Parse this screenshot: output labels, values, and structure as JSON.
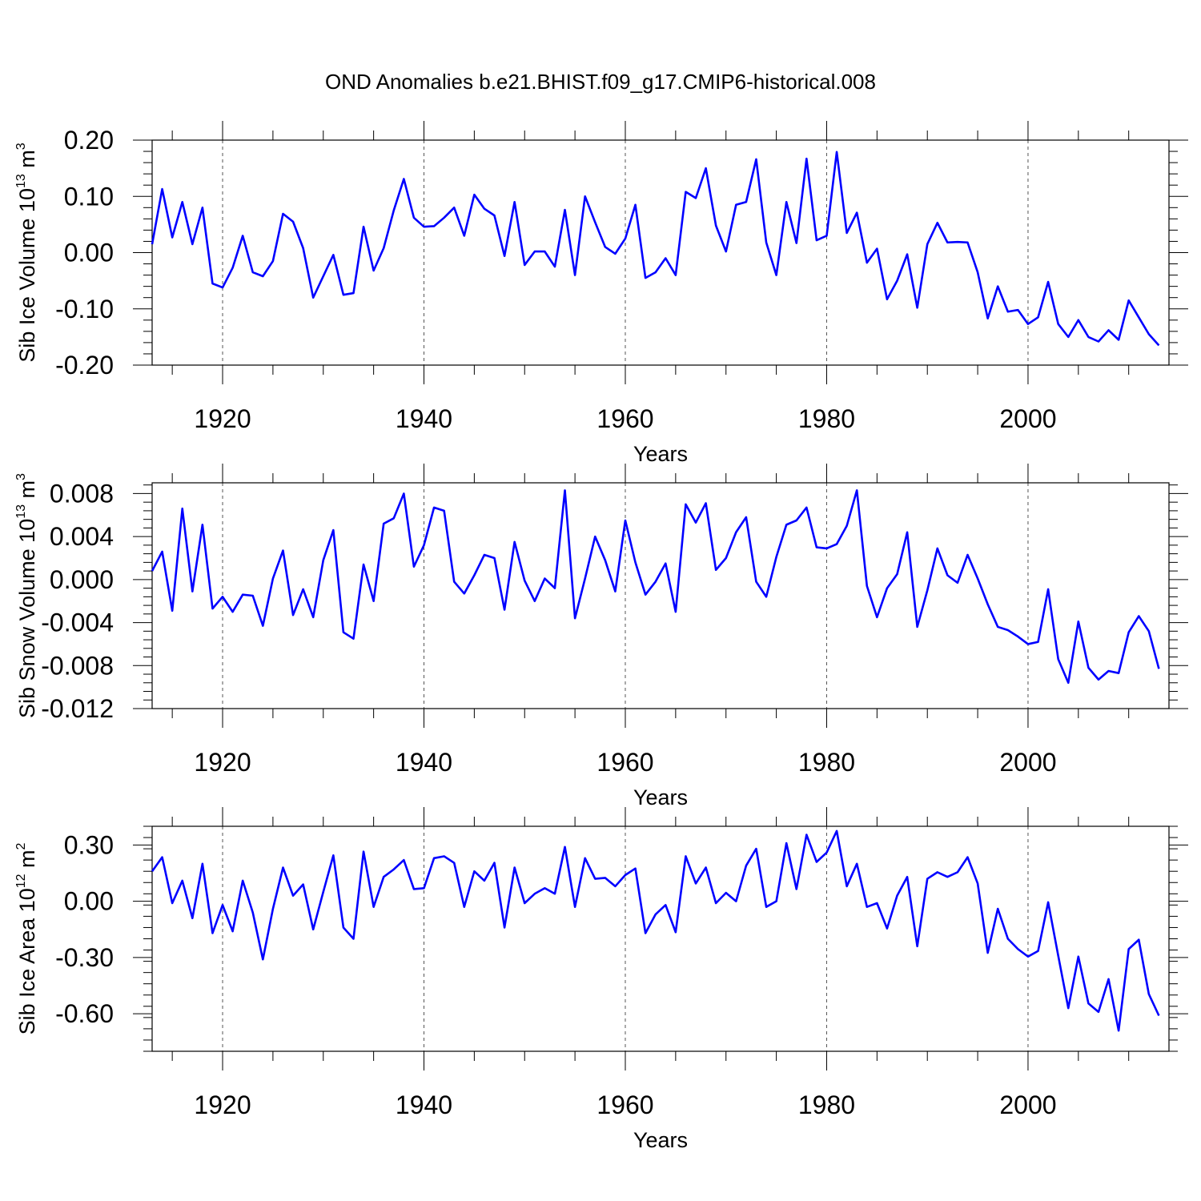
{
  "figure_title": "OND Anomalies b.e21.BHIST.f09_g17.CMIP6-historical.008",
  "chart_data": [
    {
      "type": "line",
      "title": "OND Anomalies b.e21.BHIST.f09_g17.CMIP6-historical.008",
      "xlabel": "Years",
      "ylabel": "Sib Ice Volume 10",
      "ylabel_sup": "13",
      "ylabel_unit": " m",
      "ylabel_unit_sup": "3",
      "xlim": [
        1913,
        2014
      ],
      "ylim": [
        -0.2,
        0.2
      ],
      "xticks": [
        1920,
        1940,
        1960,
        1980,
        2000
      ],
      "xtick_labels": [
        "1920",
        "1940",
        "1960",
        "1980",
        "2000"
      ],
      "yticks": [
        -0.2,
        -0.1,
        0.0,
        0.1,
        0.2
      ],
      "ytick_labels": [
        "-0.20",
        "-0.10",
        "0.00",
        "0.10",
        "0.20"
      ],
      "grid": "dashed vertical at major x ticks",
      "color": "#0000ff",
      "series": [
        {
          "name": "Sib Ice Volume",
          "start_year": 1913,
          "values": [
            0.015,
            0.113,
            0.027,
            0.09,
            0.015,
            0.08,
            -0.055,
            -0.062,
            -0.027,
            0.03,
            -0.035,
            -0.042,
            -0.015,
            0.069,
            0.055,
            0.008,
            -0.08,
            -0.042,
            -0.004,
            -0.075,
            -0.072,
            0.046,
            -0.032,
            0.008,
            0.075,
            0.131,
            0.062,
            0.046,
            0.047,
            0.062,
            0.08,
            0.03,
            0.103,
            0.078,
            0.066,
            -0.006,
            0.09,
            -0.022,
            0.002,
            0.002,
            -0.025,
            0.076,
            -0.04,
            0.1,
            0.054,
            0.01,
            -0.002,
            0.025,
            0.085,
            -0.045,
            -0.035,
            -0.01,
            -0.04,
            0.108,
            0.097,
            0.15,
            0.048,
            0.002,
            0.085,
            0.09,
            0.166,
            0.018,
            -0.04,
            0.09,
            0.017,
            0.167,
            0.022,
            0.03,
            0.179,
            0.035,
            0.071,
            -0.018,
            0.007,
            -0.083,
            -0.05,
            -0.003,
            -0.098,
            0.015,
            0.053,
            0.018,
            0.019,
            0.018,
            -0.035,
            -0.117,
            -0.06,
            -0.105,
            -0.102,
            -0.127,
            -0.115,
            -0.052,
            -0.127,
            -0.15,
            -0.12,
            -0.15,
            -0.158,
            -0.138,
            -0.155,
            -0.085,
            -0.115,
            -0.145,
            -0.165
          ]
        }
      ]
    },
    {
      "type": "line",
      "xlabel": "Years",
      "ylabel": "Sib Snow Volume 10",
      "ylabel_sup": "13",
      "ylabel_unit": " m",
      "ylabel_unit_sup": "3",
      "xlim": [
        1913,
        2014
      ],
      "ylim": [
        -0.012,
        0.009
      ],
      "xticks": [
        1920,
        1940,
        1960,
        1980,
        2000
      ],
      "xtick_labels": [
        "1920",
        "1940",
        "1960",
        "1980",
        "2000"
      ],
      "yticks": [
        -0.012,
        -0.008,
        -0.004,
        0.0,
        0.004,
        0.008
      ],
      "ytick_labels": [
        "-0.012",
        "-0.008",
        "-0.004",
        "0.000",
        "0.004",
        "0.008"
      ],
      "grid": "dashed vertical at major x ticks",
      "color": "#0000ff",
      "series": [
        {
          "name": "Sib Snow Volume",
          "start_year": 1913,
          "values": [
            0.0008,
            0.0026,
            -0.0029,
            0.0066,
            -0.0011,
            0.0051,
            -0.0027,
            -0.0016,
            -0.003,
            -0.0014,
            -0.0015,
            -0.0043,
            0.0001,
            0.0027,
            -0.0033,
            -0.0009,
            -0.0035,
            0.0018,
            0.0046,
            -0.0049,
            -0.0055,
            0.0014,
            -0.002,
            0.0052,
            0.0057,
            0.008,
            0.0012,
            0.0032,
            0.0067,
            0.0064,
            -0.0002,
            -0.0013,
            0.0004,
            0.0023,
            0.002,
            -0.0028,
            0.0035,
            -0.0001,
            -0.002,
            0.0001,
            -0.0008,
            0.0083,
            -0.0036,
            0.0001,
            0.004,
            0.0018,
            -0.0011,
            0.0055,
            0.0016,
            -0.0014,
            -0.0002,
            0.0015,
            -0.003,
            0.007,
            0.0053,
            0.0071,
            0.0009,
            0.002,
            0.0044,
            0.0058,
            -0.0002,
            -0.0016,
            0.0021,
            0.0051,
            0.0055,
            0.0067,
            0.003,
            0.0029,
            0.0033,
            0.005,
            0.0083,
            -0.0006,
            -0.0035,
            -0.0008,
            0.0005,
            0.0044,
            -0.0044,
            -0.001,
            0.0029,
            0.0004,
            -0.0003,
            0.0023,
            0.0001,
            -0.0023,
            -0.0044,
            -0.0047,
            -0.0053,
            -0.006,
            -0.0058,
            -0.0009,
            -0.0074,
            -0.0096,
            -0.0039,
            -0.0082,
            -0.0093,
            -0.0085,
            -0.0087,
            -0.0049,
            -0.0034,
            -0.0048,
            -0.0083
          ]
        }
      ]
    },
    {
      "type": "line",
      "xlabel": "Years",
      "ylabel": "Sib Ice Area 10",
      "ylabel_sup": "12",
      "ylabel_unit": " m",
      "ylabel_unit_sup": "2",
      "xlim": [
        1913,
        2014
      ],
      "ylim": [
        -0.8,
        0.4
      ],
      "xticks": [
        1920,
        1940,
        1960,
        1980,
        2000
      ],
      "xtick_labels": [
        "1920",
        "1940",
        "1960",
        "1980",
        "2000"
      ],
      "yticks": [
        -0.6,
        -0.3,
        0.0,
        0.3
      ],
      "ytick_labels": [
        "-0.60",
        "-0.30",
        "0.00",
        "0.30"
      ],
      "grid": "dashed vertical at major x ticks",
      "color": "#0000ff",
      "series": [
        {
          "name": "Sib Ice Area",
          "start_year": 1913,
          "values": [
            0.16,
            0.235,
            -0.01,
            0.11,
            -0.09,
            0.2,
            -0.17,
            -0.02,
            -0.16,
            0.11,
            -0.06,
            -0.31,
            -0.04,
            0.18,
            0.03,
            0.09,
            -0.15,
            0.05,
            0.245,
            -0.14,
            -0.2,
            0.265,
            -0.03,
            0.13,
            0.17,
            0.22,
            0.065,
            0.07,
            0.23,
            0.24,
            0.205,
            -0.03,
            0.16,
            0.11,
            0.205,
            -0.14,
            0.18,
            -0.01,
            0.04,
            0.07,
            0.04,
            0.29,
            -0.03,
            0.23,
            0.12,
            0.125,
            0.08,
            0.14,
            0.175,
            -0.17,
            -0.07,
            -0.02,
            -0.165,
            0.24,
            0.095,
            0.18,
            -0.01,
            0.045,
            0.0,
            0.19,
            0.28,
            -0.03,
            0.0,
            0.31,
            0.065,
            0.355,
            0.21,
            0.26,
            0.375,
            0.08,
            0.2,
            -0.03,
            -0.01,
            -0.145,
            0.03,
            0.13,
            -0.24,
            0.12,
            0.155,
            0.13,
            0.155,
            0.235,
            0.095,
            -0.275,
            -0.04,
            -0.2,
            -0.255,
            -0.295,
            -0.265,
            -0.005,
            -0.29,
            -0.57,
            -0.295,
            -0.545,
            -0.59,
            -0.415,
            -0.69,
            -0.255,
            -0.205,
            -0.495,
            -0.61
          ]
        }
      ]
    }
  ]
}
